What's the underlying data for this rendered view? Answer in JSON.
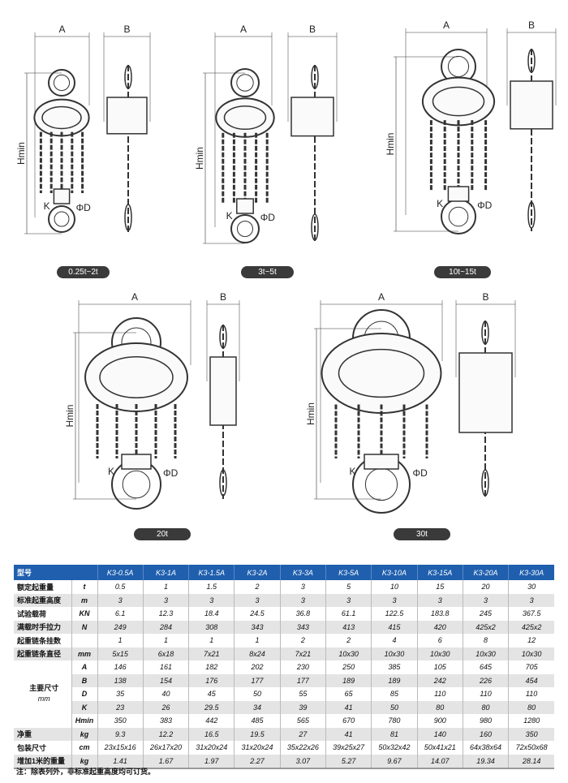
{
  "drawings": [
    {
      "label": "0.25t~2t",
      "dim_a": "A",
      "dim_b": "B",
      "dim_h": "Hmin",
      "dim_k": "K",
      "dim_d": "ΦD"
    },
    {
      "label": "3t~5t",
      "dim_a": "A",
      "dim_b": "B",
      "dim_h": "Hmin",
      "dim_k": "K",
      "dim_d": "ΦD"
    },
    {
      "label": "10t~15t",
      "dim_a": "A",
      "dim_b": "B",
      "dim_h": "Hmin",
      "dim_k": "K",
      "dim_d": "ΦD"
    },
    {
      "label": "20t",
      "dim_a": "A",
      "dim_b": "B",
      "dim_h": "Hmin",
      "dim_k": "K",
      "dim_d": "ΦD"
    },
    {
      "label": "30t",
      "dim_a": "A",
      "dim_b": "B",
      "dim_h": "Hmin",
      "dim_k": "K",
      "dim_d": "ΦD"
    }
  ],
  "table": {
    "header_label": "型号",
    "header_color": "#1f5fae",
    "models": [
      "K3-0.5A",
      "K3-1A",
      "K3-1.5A",
      "K3-2A",
      "K3-3A",
      "K3-5A",
      "K3-10A",
      "K3-15A",
      "K3-20A",
      "K3-30A"
    ],
    "dim_group_label": "主要尺寸",
    "dim_group_unit": "mm",
    "rows": [
      {
        "name": "额定起重量",
        "unit": "t",
        "values": [
          "0.5",
          "1",
          "1.5",
          "2",
          "3",
          "5",
          "10",
          "15",
          "20",
          "30"
        ]
      },
      {
        "name": "标准起重高度",
        "unit": "m",
        "values": [
          "3",
          "3",
          "3",
          "3",
          "3",
          "3",
          "3",
          "3",
          "3",
          "3"
        ]
      },
      {
        "name": "试验载荷",
        "unit": "KN",
        "values": [
          "6.1",
          "12.3",
          "18.4",
          "24.5",
          "36.8",
          "61.1",
          "122.5",
          "183.8",
          "245",
          "367.5"
        ]
      },
      {
        "name": "满载时手拉力",
        "unit": "N",
        "values": [
          "249",
          "284",
          "308",
          "343",
          "343",
          "413",
          "415",
          "420",
          "425x2",
          "425x2"
        ]
      },
      {
        "name": "起重链条挂数",
        "unit": "",
        "values": [
          "1",
          "1",
          "1",
          "1",
          "2",
          "2",
          "4",
          "6",
          "8",
          "12"
        ]
      },
      {
        "name": "起重链条直径",
        "unit": "mm",
        "values": [
          "5x15",
          "6x18",
          "7x21",
          "8x24",
          "7x21",
          "10x30",
          "10x30",
          "10x30",
          "10x30",
          "10x30"
        ]
      },
      {
        "name": "",
        "unit": "A",
        "values": [
          "146",
          "161",
          "182",
          "202",
          "230",
          "250",
          "385",
          "105",
          "645",
          "705"
        ]
      },
      {
        "name": "",
        "unit": "B",
        "values": [
          "138",
          "154",
          "176",
          "177",
          "177",
          "189",
          "189",
          "242",
          "226",
          "454"
        ]
      },
      {
        "name": "",
        "unit": "D",
        "values": [
          "35",
          "40",
          "45",
          "50",
          "55",
          "65",
          "85",
          "110",
          "110",
          "110"
        ]
      },
      {
        "name": "",
        "unit": "K",
        "values": [
          "23",
          "26",
          "29.5",
          "34",
          "39",
          "41",
          "50",
          "80",
          "80",
          "80"
        ]
      },
      {
        "name": "",
        "unit": "Hmin",
        "values": [
          "350",
          "383",
          "442",
          "485",
          "565",
          "670",
          "780",
          "900",
          "980",
          "1280"
        ]
      },
      {
        "name": "净重",
        "unit": "kg",
        "values": [
          "9.3",
          "12.2",
          "16.5",
          "19.5",
          "27",
          "41",
          "81",
          "140",
          "160",
          "350"
        ]
      },
      {
        "name": "包装尺寸",
        "unit": "cm",
        "values": [
          "23x15x16",
          "26x17x20",
          "31x20x24",
          "31x20x24",
          "35x22x26",
          "39x25x27",
          "50x32x42",
          "50x41x21",
          "64x38x64",
          "72x50x68"
        ]
      },
      {
        "name": "增加1米的重量",
        "unit": "kg",
        "values": [
          "1.41",
          "1.67",
          "1.97",
          "2.27",
          "3.07",
          "5.27",
          "9.67",
          "14.07",
          "19.34",
          "28.14"
        ]
      }
    ]
  },
  "note": "注：除表列外，非标准起重高度均可订货。"
}
